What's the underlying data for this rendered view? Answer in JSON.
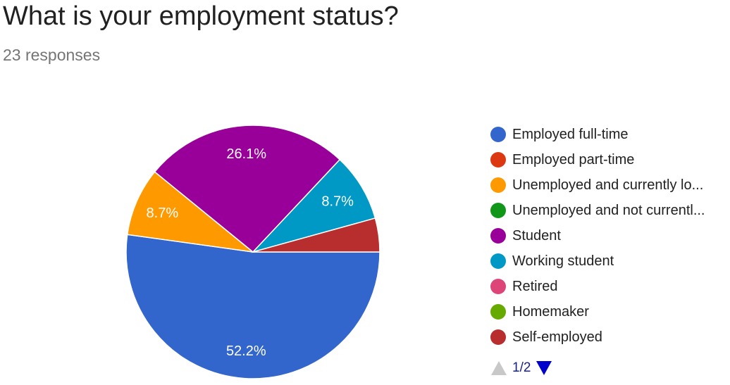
{
  "header": {
    "title": "What is your employment status?",
    "subtitle": "23 responses"
  },
  "chart_data": {
    "type": "pie",
    "categories": [
      "Employed full-time",
      "Employed part-time",
      "Unemployed and currently lo...",
      "Unemployed and not currentl...",
      "Student",
      "Working student",
      "Retired",
      "Homemaker",
      "Self-employed"
    ],
    "values": [
      52.2,
      0,
      8.7,
      0,
      26.1,
      8.7,
      0,
      0,
      4.3
    ],
    "data_labels": [
      "52.2%",
      "",
      "8.7%",
      "",
      "26.1%",
      "8.7%",
      "",
      "",
      ""
    ],
    "colors": [
      "#3366cc",
      "#dc3912",
      "#ff9900",
      "#109618",
      "#990099",
      "#0099c6",
      "#dd4477",
      "#66aa00",
      "#b82e2e"
    ],
    "legend_position": "right"
  },
  "pager": {
    "text": "1/2",
    "up_icon": "triangle-up-icon",
    "down_icon": "triangle-down-icon"
  }
}
